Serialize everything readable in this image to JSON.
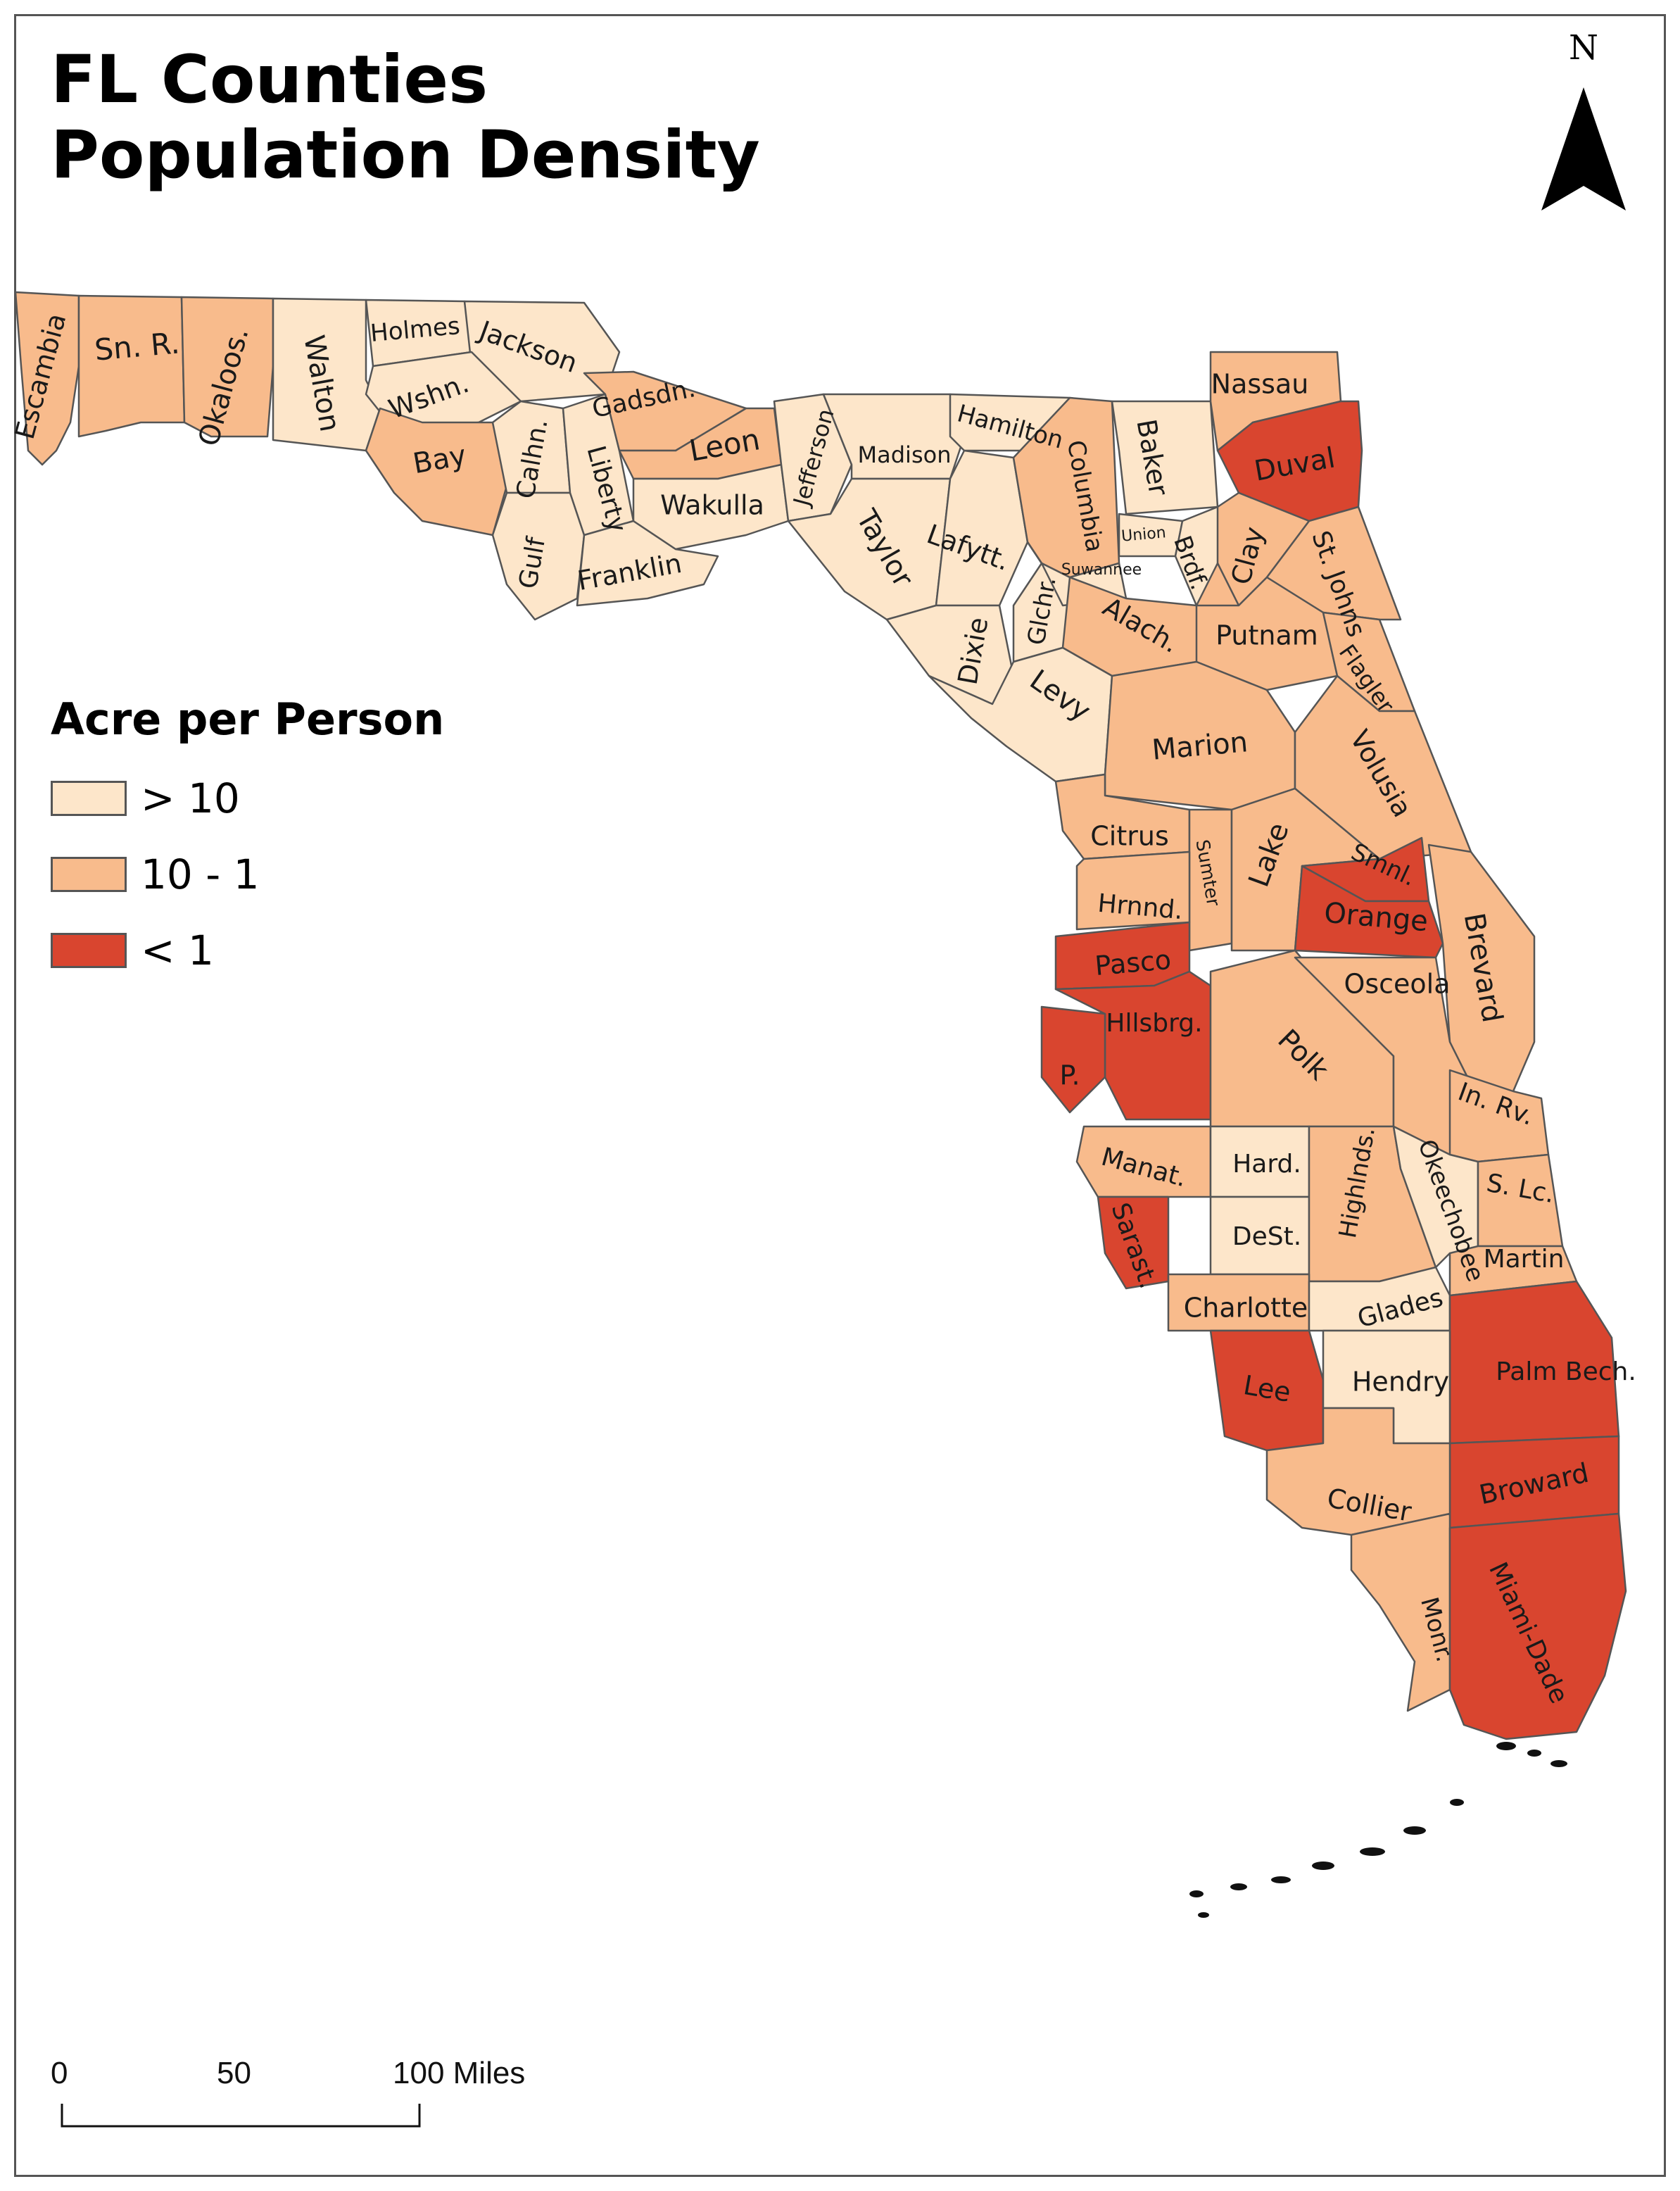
{
  "title_line1": "FL Counties",
  "title_line2": "Population Density",
  "north_label": "N",
  "legend": {
    "title": "Acre per Person",
    "items": [
      {
        "label": "> 10",
        "color": "#fde6ca"
      },
      {
        "label": "10 - 1",
        "color": "#f8bb8c"
      },
      {
        "label": "< 1",
        "color": "#d9452f"
      }
    ]
  },
  "scale": {
    "labels": [
      "0",
      "50",
      "100 Miles"
    ]
  },
  "counties": [
    {
      "name": "Escambia",
      "class": "10 - 1"
    },
    {
      "name": "Sn. R.",
      "class": "10 - 1"
    },
    {
      "name": "Okaloos.",
      "class": "10 - 1"
    },
    {
      "name": "Walton",
      "class": "> 10"
    },
    {
      "name": "Holmes",
      "class": "> 10"
    },
    {
      "name": "Jackson",
      "class": "> 10"
    },
    {
      "name": "Wshn.",
      "class": "> 10"
    },
    {
      "name": "Bay",
      "class": "10 - 1"
    },
    {
      "name": "Calhn.",
      "class": "> 10"
    },
    {
      "name": "Gulf",
      "class": "> 10"
    },
    {
      "name": "Liberty",
      "class": "> 10"
    },
    {
      "name": "Franklin",
      "class": "> 10"
    },
    {
      "name": "Gadsdn.",
      "class": "10 - 1"
    },
    {
      "name": "Leon",
      "class": "10 - 1"
    },
    {
      "name": "Wakulla",
      "class": "> 10"
    },
    {
      "name": "Jefferson",
      "class": "> 10"
    },
    {
      "name": "Madison",
      "class": "> 10"
    },
    {
      "name": "Taylor",
      "class": "> 10"
    },
    {
      "name": "Hamilton",
      "class": "> 10"
    },
    {
      "name": "Lafytt.",
      "class": "> 10"
    },
    {
      "name": "Dixie",
      "class": "> 10"
    },
    {
      "name": "Glchr.",
      "class": "> 10"
    },
    {
      "name": "Columbia",
      "class": "10 - 1"
    },
    {
      "name": "Suwannee",
      "class": "> 10"
    },
    {
      "name": "Baker",
      "class": "> 10"
    },
    {
      "name": "Union",
      "class": "> 10"
    },
    {
      "name": "Brdf.",
      "class": "> 10"
    },
    {
      "name": "Nassau",
      "class": "10 - 1"
    },
    {
      "name": "Duval",
      "class": "< 1"
    },
    {
      "name": "Clay",
      "class": "10 - 1"
    },
    {
      "name": "St. Johns",
      "class": "10 - 1"
    },
    {
      "name": "Alach.",
      "class": "10 - 1"
    },
    {
      "name": "Putnam",
      "class": "10 - 1"
    },
    {
      "name": "Flagler",
      "class": "10 - 1"
    },
    {
      "name": "Levy",
      "class": "> 10"
    },
    {
      "name": "Marion",
      "class": "10 - 1"
    },
    {
      "name": "Volusia",
      "class": "10 - 1"
    },
    {
      "name": "Citrus",
      "class": "10 - 1"
    },
    {
      "name": "Sumter",
      "class": "10 - 1"
    },
    {
      "name": "Lake",
      "class": "10 - 1"
    },
    {
      "name": "Smnl.",
      "class": "< 1"
    },
    {
      "name": "Orange",
      "class": "< 1"
    },
    {
      "name": "Brevard",
      "class": "10 - 1"
    },
    {
      "name": "Hrnnd.",
      "class": "10 - 1"
    },
    {
      "name": "Pasco",
      "class": "< 1"
    },
    {
      "name": "Hllsbrg.",
      "class": "< 1"
    },
    {
      "name": "P.",
      "class": "< 1"
    },
    {
      "name": "Polk",
      "class": "10 - 1"
    },
    {
      "name": "Osceola",
      "class": "10 - 1"
    },
    {
      "name": "In. Rv.",
      "class": "10 - 1"
    },
    {
      "name": "Manat.",
      "class": "10 - 1"
    },
    {
      "name": "Hard.",
      "class": "> 10"
    },
    {
      "name": "DeSt.",
      "class": "> 10"
    },
    {
      "name": "Highlnds.",
      "class": "10 - 1"
    },
    {
      "name": "Okeechobee",
      "class": "> 10"
    },
    {
      "name": "S. Lc.",
      "class": "10 - 1"
    },
    {
      "name": "Sarast.",
      "class": "< 1"
    },
    {
      "name": "Martin",
      "class": "10 - 1"
    },
    {
      "name": "Charlotte",
      "class": "10 - 1"
    },
    {
      "name": "Glades",
      "class": "> 10"
    },
    {
      "name": "Palm Bech.",
      "class": "< 1"
    },
    {
      "name": "Lee",
      "class": "< 1"
    },
    {
      "name": "Hendry",
      "class": "> 10"
    },
    {
      "name": "Broward",
      "class": "< 1"
    },
    {
      "name": "Collier",
      "class": "10 - 1"
    },
    {
      "name": "Monr.",
      "class": "10 - 1"
    },
    {
      "name": "Miami-Dade",
      "class": "< 1"
    }
  ]
}
